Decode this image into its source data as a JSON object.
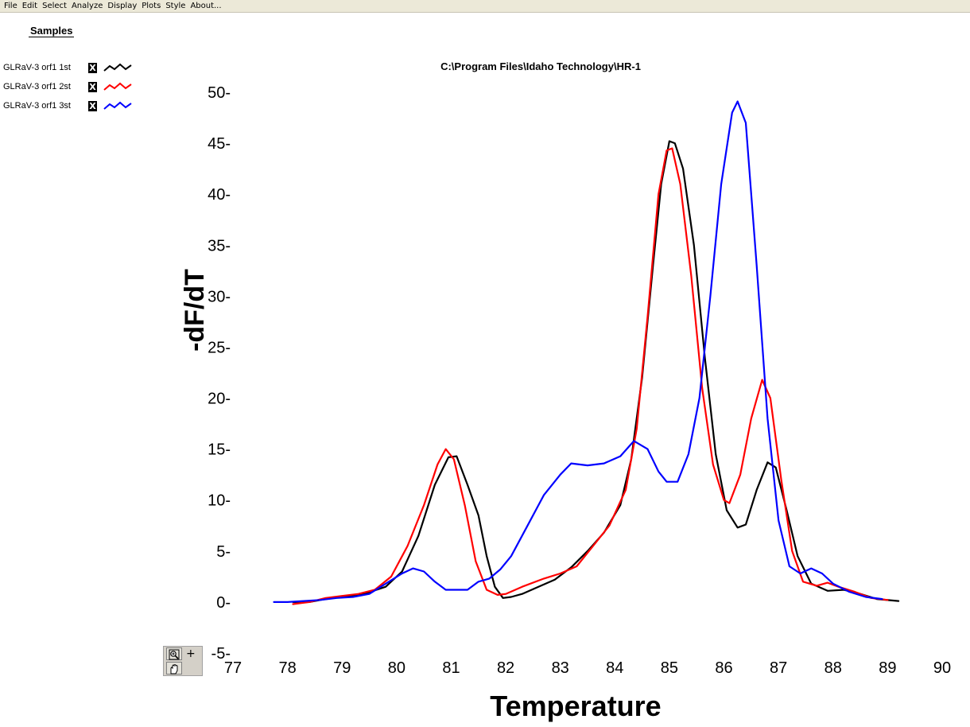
{
  "menu": [
    "File",
    "Edit",
    "Select",
    "Analyze",
    "Display",
    "Plots",
    "Style",
    "About..."
  ],
  "legend": {
    "title": "Samples",
    "toggle_glyph": "X",
    "items": [
      {
        "label": "GLRaV-3 orf1 1st",
        "color": "#000000"
      },
      {
        "label": "GLRaV-3 orf1 2st",
        "color": "#ff0000"
      },
      {
        "label": "GLRaV-3 orf1 3st",
        "color": "#0000ff"
      }
    ]
  },
  "tools": {
    "zoom_icon": "zoom-in-icon",
    "hand_icon": "hand-pan-icon",
    "plus_glyph": "+"
  },
  "chart_data": {
    "type": "line",
    "title": "C:\\Program Files\\Idaho Technology\\HR-1",
    "xlabel": "Temperature",
    "ylabel": "-dF/dT",
    "xlim": [
      77,
      90
    ],
    "ylim": [
      -5,
      50
    ],
    "xticks": [
      77,
      78,
      79,
      80,
      81,
      82,
      83,
      84,
      85,
      86,
      87,
      88,
      89,
      90
    ],
    "yticks": [
      -5,
      0,
      5,
      10,
      15,
      20,
      25,
      30,
      35,
      40,
      45,
      50
    ],
    "grid": false,
    "series": [
      {
        "name": "GLRaV-3 orf1 1st",
        "color": "#000000",
        "points": [
          [
            78.1,
            0
          ],
          [
            78.4,
            0
          ],
          [
            78.7,
            0.3
          ],
          [
            79.0,
            0.5
          ],
          [
            79.4,
            0.8
          ],
          [
            79.8,
            1.5
          ],
          [
            80.1,
            3
          ],
          [
            80.4,
            6.5
          ],
          [
            80.7,
            11.5
          ],
          [
            80.95,
            14.2
          ],
          [
            81.1,
            14.3
          ],
          [
            81.3,
            11.5
          ],
          [
            81.5,
            8.5
          ],
          [
            81.65,
            4.5
          ],
          [
            81.8,
            1.5
          ],
          [
            81.95,
            0.4
          ],
          [
            82.1,
            0.5
          ],
          [
            82.3,
            0.8
          ],
          [
            82.6,
            1.5
          ],
          [
            82.9,
            2.2
          ],
          [
            83.2,
            3.4
          ],
          [
            83.5,
            5
          ],
          [
            83.8,
            6.8
          ],
          [
            84.1,
            9.5
          ],
          [
            84.3,
            14
          ],
          [
            84.5,
            22
          ],
          [
            84.7,
            33
          ],
          [
            84.85,
            41
          ],
          [
            85.0,
            45.2
          ],
          [
            85.1,
            45
          ],
          [
            85.25,
            42.5
          ],
          [
            85.45,
            35
          ],
          [
            85.65,
            24
          ],
          [
            85.85,
            14.5
          ],
          [
            86.05,
            9
          ],
          [
            86.25,
            7.3
          ],
          [
            86.4,
            7.6
          ],
          [
            86.6,
            11
          ],
          [
            86.8,
            13.7
          ],
          [
            86.95,
            13.2
          ],
          [
            87.15,
            9
          ],
          [
            87.35,
            4.5
          ],
          [
            87.6,
            1.8
          ],
          [
            87.9,
            1.1
          ],
          [
            88.2,
            1.2
          ],
          [
            88.5,
            0.8
          ],
          [
            88.8,
            0.3
          ],
          [
            89.2,
            0.1
          ]
        ]
      },
      {
        "name": "GLRaV-3 orf1 2st",
        "color": "#ff0000",
        "points": [
          [
            78.1,
            -0.2
          ],
          [
            78.4,
            0
          ],
          [
            78.7,
            0.4
          ],
          [
            79.0,
            0.6
          ],
          [
            79.3,
            0.8
          ],
          [
            79.6,
            1.2
          ],
          [
            79.9,
            2.5
          ],
          [
            80.2,
            5.5
          ],
          [
            80.5,
            9.5
          ],
          [
            80.75,
            13.5
          ],
          [
            80.9,
            15
          ],
          [
            81.05,
            14
          ],
          [
            81.25,
            9.5
          ],
          [
            81.45,
            4
          ],
          [
            81.65,
            1.2
          ],
          [
            81.85,
            0.7
          ],
          [
            82.0,
            0.8
          ],
          [
            82.3,
            1.5
          ],
          [
            82.7,
            2.3
          ],
          [
            83.0,
            2.8
          ],
          [
            83.3,
            3.5
          ],
          [
            83.6,
            5.5
          ],
          [
            83.9,
            7.5
          ],
          [
            84.2,
            11
          ],
          [
            84.4,
            17
          ],
          [
            84.6,
            28
          ],
          [
            84.8,
            40
          ],
          [
            84.95,
            44.3
          ],
          [
            85.05,
            44.5
          ],
          [
            85.2,
            41
          ],
          [
            85.4,
            32
          ],
          [
            85.6,
            21
          ],
          [
            85.8,
            13.5
          ],
          [
            86.0,
            10
          ],
          [
            86.1,
            9.7
          ],
          [
            86.3,
            12.5
          ],
          [
            86.5,
            18
          ],
          [
            86.7,
            21.8
          ],
          [
            86.85,
            20
          ],
          [
            87.05,
            12
          ],
          [
            87.25,
            5
          ],
          [
            87.45,
            2
          ],
          [
            87.7,
            1.6
          ],
          [
            87.9,
            1.9
          ],
          [
            88.1,
            1.5
          ],
          [
            88.4,
            1
          ],
          [
            88.7,
            0.4
          ],
          [
            89.0,
            0.2
          ]
        ]
      },
      {
        "name": "GLRaV-3 orf1 3st",
        "color": "#0000ff",
        "points": [
          [
            77.75,
            0
          ],
          [
            78.0,
            0
          ],
          [
            78.3,
            0.1
          ],
          [
            78.6,
            0.2
          ],
          [
            78.9,
            0.4
          ],
          [
            79.2,
            0.5
          ],
          [
            79.5,
            0.8
          ],
          [
            79.8,
            1.8
          ],
          [
            80.1,
            2.8
          ],
          [
            80.3,
            3.3
          ],
          [
            80.5,
            3
          ],
          [
            80.7,
            2
          ],
          [
            80.9,
            1.2
          ],
          [
            81.1,
            1.2
          ],
          [
            81.3,
            1.2
          ],
          [
            81.5,
            2
          ],
          [
            81.7,
            2.3
          ],
          [
            81.9,
            3.2
          ],
          [
            82.1,
            4.5
          ],
          [
            82.4,
            7.5
          ],
          [
            82.7,
            10.5
          ],
          [
            83.0,
            12.5
          ],
          [
            83.2,
            13.6
          ],
          [
            83.5,
            13.4
          ],
          [
            83.8,
            13.6
          ],
          [
            84.1,
            14.3
          ],
          [
            84.35,
            15.8
          ],
          [
            84.6,
            15
          ],
          [
            84.8,
            12.8
          ],
          [
            84.95,
            11.8
          ],
          [
            85.15,
            11.8
          ],
          [
            85.35,
            14.5
          ],
          [
            85.55,
            20
          ],
          [
            85.75,
            30
          ],
          [
            85.95,
            41
          ],
          [
            86.15,
            48
          ],
          [
            86.25,
            49.1
          ],
          [
            86.4,
            47
          ],
          [
            86.6,
            33
          ],
          [
            86.8,
            18
          ],
          [
            87.0,
            8
          ],
          [
            87.2,
            3.5
          ],
          [
            87.4,
            2.8
          ],
          [
            87.6,
            3.3
          ],
          [
            87.8,
            2.8
          ],
          [
            88.0,
            1.8
          ],
          [
            88.3,
            1
          ],
          [
            88.6,
            0.5
          ],
          [
            88.9,
            0.3
          ]
        ]
      }
    ]
  }
}
